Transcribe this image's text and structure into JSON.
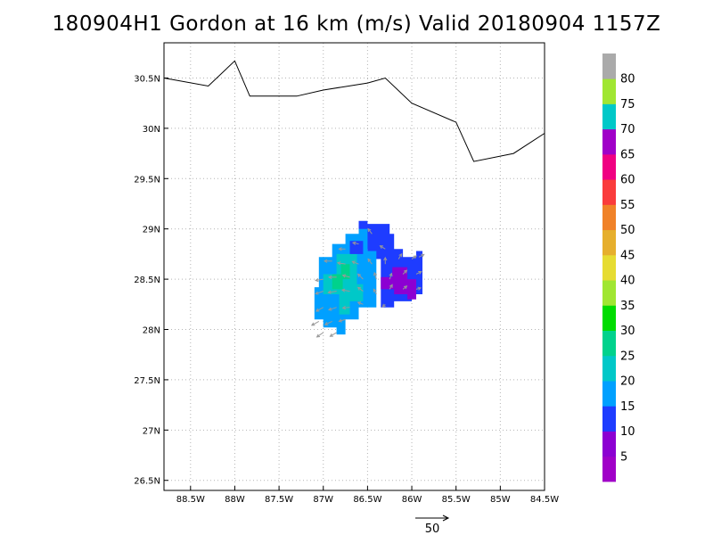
{
  "title": "180904H1 Gordon at 16 km (m/s) Valid 20180904 1157Z",
  "map": {
    "lon_range": [
      -88.8,
      -84.5
    ],
    "lat_range": [
      26.4,
      30.85
    ],
    "lon_ticks": [
      -88.5,
      -88,
      -87.5,
      -87,
      -86.5,
      -86,
      -85.5,
      -85,
      -84.5
    ],
    "lon_tick_labels": [
      "88.5W",
      "88W",
      "87.5W",
      "87W",
      "86.5W",
      "86W",
      "85.5W",
      "85W",
      "84.5W"
    ],
    "lat_ticks": [
      26.5,
      27,
      27.5,
      28,
      28.5,
      29,
      29.5,
      30,
      30.5
    ],
    "lat_tick_labels": [
      "26.5N",
      "27N",
      "27.5N",
      "28N",
      "28.5N",
      "29N",
      "29.5N",
      "30N",
      "30.5N"
    ],
    "grid": true,
    "coastline": [
      [
        -88.8,
        30.5
      ],
      [
        -88.3,
        30.42
      ],
      [
        -88.0,
        30.67
      ],
      [
        -87.83,
        30.32
      ],
      [
        -87.5,
        30.32
      ],
      [
        -87.3,
        30.32
      ],
      [
        -87.0,
        30.38
      ],
      [
        -86.5,
        30.45
      ],
      [
        -86.3,
        30.5
      ],
      [
        -86.0,
        30.25
      ],
      [
        -85.5,
        30.06
      ],
      [
        -85.3,
        29.67
      ],
      [
        -84.85,
        29.75
      ],
      [
        -84.5,
        29.95
      ]
    ],
    "colors": {
      "c5_10": "#8c00d2",
      "c10_15": "#1e3cff",
      "c15_20": "#00a0ff",
      "c20_25": "#00c8c8",
      "c25_30": "#00d28c"
    },
    "regions": [
      {
        "level": "c10_15",
        "polygon": [
          [
            -86.6,
            29.08
          ],
          [
            -86.5,
            29.08
          ],
          [
            -86.5,
            29.05
          ],
          [
            -86.25,
            29.05
          ],
          [
            -86.25,
            28.95
          ],
          [
            -86.2,
            28.95
          ],
          [
            -86.2,
            28.8
          ],
          [
            -86.1,
            28.8
          ],
          [
            -86.1,
            28.72
          ],
          [
            -85.95,
            28.72
          ],
          [
            -85.95,
            28.78
          ],
          [
            -85.88,
            28.78
          ],
          [
            -85.88,
            28.35
          ],
          [
            -86.0,
            28.35
          ],
          [
            -86.0,
            28.28
          ],
          [
            -86.2,
            28.28
          ],
          [
            -86.2,
            28.22
          ],
          [
            -86.35,
            28.22
          ],
          [
            -86.35,
            28.7
          ],
          [
            -86.5,
            28.7
          ],
          [
            -86.5,
            28.8
          ],
          [
            -86.6,
            28.8
          ]
        ]
      },
      {
        "level": "c15_20",
        "polygon": [
          [
            -87.05,
            28.72
          ],
          [
            -86.9,
            28.72
          ],
          [
            -86.9,
            28.85
          ],
          [
            -86.75,
            28.85
          ],
          [
            -86.75,
            28.95
          ],
          [
            -86.6,
            28.95
          ],
          [
            -86.6,
            29.0
          ],
          [
            -86.5,
            29.0
          ],
          [
            -86.5,
            28.78
          ],
          [
            -86.4,
            28.78
          ],
          [
            -86.4,
            28.22
          ],
          [
            -86.6,
            28.22
          ],
          [
            -86.6,
            28.1
          ],
          [
            -86.75,
            28.1
          ],
          [
            -86.75,
            27.95
          ],
          [
            -86.85,
            27.95
          ],
          [
            -86.85,
            28.02
          ],
          [
            -87.0,
            28.02
          ],
          [
            -87.0,
            28.1
          ],
          [
            -87.1,
            28.1
          ],
          [
            -87.1,
            28.42
          ],
          [
            -87.05,
            28.42
          ]
        ]
      },
      {
        "level": "c20_25",
        "polygon": [
          [
            -86.85,
            28.75
          ],
          [
            -86.62,
            28.75
          ],
          [
            -86.62,
            28.45
          ],
          [
            -86.55,
            28.45
          ],
          [
            -86.55,
            28.28
          ],
          [
            -86.7,
            28.28
          ],
          [
            -86.7,
            28.15
          ],
          [
            -86.82,
            28.15
          ],
          [
            -86.82,
            28.35
          ],
          [
            -87.0,
            28.35
          ],
          [
            -87.0,
            28.55
          ],
          [
            -86.85,
            28.55
          ]
        ]
      },
      {
        "level": "c25_30",
        "polygon": [
          [
            -86.8,
            28.65
          ],
          [
            -86.7,
            28.65
          ],
          [
            -86.7,
            28.5
          ],
          [
            -86.78,
            28.5
          ],
          [
            -86.78,
            28.4
          ],
          [
            -86.9,
            28.4
          ],
          [
            -86.9,
            28.55
          ],
          [
            -86.8,
            28.55
          ]
        ]
      },
      {
        "level": "c10_15",
        "polygon": [
          [
            -86.7,
            28.88
          ],
          [
            -86.55,
            28.88
          ],
          [
            -86.55,
            28.75
          ],
          [
            -86.7,
            28.75
          ]
        ]
      },
      {
        "level": "c5_10",
        "polygon": [
          [
            -86.22,
            28.62
          ],
          [
            -86.05,
            28.62
          ],
          [
            -86.05,
            28.5
          ],
          [
            -85.95,
            28.5
          ],
          [
            -85.95,
            28.3
          ],
          [
            -86.05,
            28.3
          ],
          [
            -86.05,
            28.35
          ],
          [
            -86.2,
            28.35
          ],
          [
            -86.2,
            28.4
          ],
          [
            -86.35,
            28.4
          ],
          [
            -86.35,
            28.52
          ],
          [
            -86.22,
            28.52
          ]
        ]
      }
    ],
    "vectors": [
      {
        "lon": -86.45,
        "lat": 28.95,
        "u": -6,
        "v": 8
      },
      {
        "lon": -86.6,
        "lat": 28.85,
        "u": -9,
        "v": 2
      },
      {
        "lon": -86.75,
        "lat": 28.8,
        "u": -10,
        "v": 0
      },
      {
        "lon": -86.3,
        "lat": 28.8,
        "u": -8,
        "v": 5
      },
      {
        "lon": -86.9,
        "lat": 28.68,
        "u": -12,
        "v": 0
      },
      {
        "lon": -86.75,
        "lat": 28.65,
        "u": -12,
        "v": 2
      },
      {
        "lon": -86.6,
        "lat": 28.65,
        "u": -10,
        "v": 4
      },
      {
        "lon": -86.45,
        "lat": 28.65,
        "u": -6,
        "v": 8
      },
      {
        "lon": -86.3,
        "lat": 28.65,
        "u": 0,
        "v": 10
      },
      {
        "lon": -86.15,
        "lat": 28.7,
        "u": 5,
        "v": 8
      },
      {
        "lon": -86.0,
        "lat": 28.7,
        "u": 7,
        "v": 5
      },
      {
        "lon": -85.92,
        "lat": 28.72,
        "u": 8,
        "v": 4
      },
      {
        "lon": -87.0,
        "lat": 28.5,
        "u": -12,
        "v": -2
      },
      {
        "lon": -86.85,
        "lat": 28.52,
        "u": -12,
        "v": 0
      },
      {
        "lon": -86.7,
        "lat": 28.52,
        "u": -11,
        "v": 3
      },
      {
        "lon": -86.55,
        "lat": 28.5,
        "u": -8,
        "v": 8
      },
      {
        "lon": -86.4,
        "lat": 28.5,
        "u": -3,
        "v": 10
      },
      {
        "lon": -86.25,
        "lat": 28.5,
        "u": 3,
        "v": 9
      },
      {
        "lon": -86.1,
        "lat": 28.55,
        "u": 6,
        "v": 6
      },
      {
        "lon": -85.95,
        "lat": 28.55,
        "u": 8,
        "v": 4
      },
      {
        "lon": -87.0,
        "lat": 28.38,
        "u": -12,
        "v": -4
      },
      {
        "lon": -86.85,
        "lat": 28.38,
        "u": -13,
        "v": -2
      },
      {
        "lon": -86.7,
        "lat": 28.38,
        "u": -12,
        "v": 2
      },
      {
        "lon": -86.55,
        "lat": 28.38,
        "u": -8,
        "v": 6
      },
      {
        "lon": -86.4,
        "lat": 28.35,
        "u": -4,
        "v": 8
      },
      {
        "lon": -86.25,
        "lat": 28.4,
        "u": 4,
        "v": 7
      },
      {
        "lon": -86.1,
        "lat": 28.4,
        "u": 6,
        "v": 5
      },
      {
        "lon": -85.95,
        "lat": 28.4,
        "u": 7,
        "v": 2
      },
      {
        "lon": -87.0,
        "lat": 28.22,
        "u": -11,
        "v": -6
      },
      {
        "lon": -86.85,
        "lat": 28.22,
        "u": -12,
        "v": -4
      },
      {
        "lon": -86.7,
        "lat": 28.22,
        "u": -11,
        "v": -1
      },
      {
        "lon": -86.55,
        "lat": 28.25,
        "u": -8,
        "v": 3
      },
      {
        "lon": -86.3,
        "lat": 28.25,
        "u": -4,
        "v": -4
      },
      {
        "lon": -87.05,
        "lat": 28.08,
        "u": -11,
        "v": -6
      },
      {
        "lon": -86.9,
        "lat": 28.08,
        "u": -11,
        "v": -5
      },
      {
        "lon": -86.75,
        "lat": 28.1,
        "u": -10,
        "v": -3
      },
      {
        "lon": -87.0,
        "lat": 27.97,
        "u": -10,
        "v": -7
      },
      {
        "lon": -86.85,
        "lat": 27.97,
        "u": -10,
        "v": -6
      }
    ],
    "reference_vector": {
      "value": 50,
      "label": "50"
    }
  },
  "colorbar": {
    "labels": [
      "5",
      "10",
      "15",
      "20",
      "25",
      "30",
      "35",
      "40",
      "45",
      "50",
      "55",
      "60",
      "65",
      "70",
      "75",
      "80"
    ],
    "colors": [
      "#a000c8",
      "#8c00d2",
      "#1e3cff",
      "#00a0ff",
      "#00c8c8",
      "#00d28c",
      "#00dc00",
      "#a0e632",
      "#e6dc32",
      "#e6af2d",
      "#f08228",
      "#fa3c3c",
      "#f00082",
      "#a000c8",
      "#00c8c8",
      "#a0e632",
      "#aaaaaa"
    ]
  }
}
